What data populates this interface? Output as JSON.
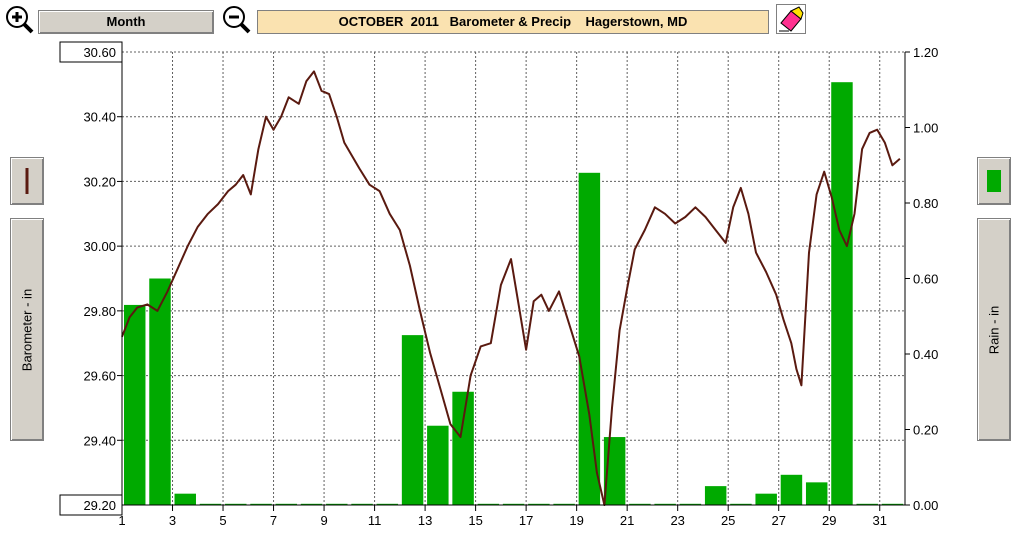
{
  "toolbar": {
    "period_label": "Month",
    "title": "OCTOBER  2011   Barometer & Precip    Hagerstown, MD"
  },
  "left_axis_label": "Barometer - in",
  "right_axis_label": "Rain - in",
  "colors": {
    "barometer_line": "#5a1a10",
    "rain_bars": "#00aa00",
    "title_bg": "#fae2b0",
    "panel_bg": "#d4d0c8"
  },
  "chart_data": {
    "type": "bar",
    "title": "OCTOBER  2011   Barometer & Precip    Hagerstown, MD",
    "xlim": [
      1,
      32
    ],
    "x_ticks": [
      1,
      3,
      5,
      7,
      9,
      11,
      13,
      15,
      17,
      19,
      21,
      23,
      25,
      27,
      29,
      31
    ],
    "x_tick_labels": [
      "1",
      "3",
      "5",
      "7",
      "9",
      "11",
      "13",
      "15",
      "17",
      "19",
      "21",
      "23",
      "25",
      "27",
      "29",
      "31"
    ],
    "grid": true,
    "y_left": {
      "label": "Barometer - in",
      "range": [
        29.2,
        30.6
      ],
      "ticks": [
        29.2,
        29.4,
        29.6,
        29.8,
        30.0,
        30.2,
        30.4,
        30.6
      ],
      "tick_labels": [
        "29.20",
        "29.40",
        "29.60",
        "29.80",
        "30.00",
        "30.20",
        "30.40",
        "30.60"
      ]
    },
    "y_right": {
      "label": "Rain - in",
      "range": [
        0,
        1.2
      ],
      "ticks": [
        0,
        0.2,
        0.4,
        0.6,
        0.8,
        1.0,
        1.2
      ],
      "tick_labels": [
        "0.00",
        "0.20",
        "0.40",
        "0.60",
        "0.80",
        "1.00",
        "1.20"
      ]
    },
    "series": [
      {
        "type": "bar",
        "axis": "right",
        "x": [
          1,
          2,
          3,
          4,
          5,
          6,
          7,
          8,
          9,
          10,
          11,
          12,
          13,
          14,
          15,
          16,
          17,
          18,
          19,
          20,
          21,
          22,
          23,
          24,
          25,
          26,
          27,
          28,
          29,
          30,
          31
        ],
        "values": [
          0.53,
          0.6,
          0.03,
          0,
          0,
          0,
          0,
          0,
          0,
          0,
          0,
          0.45,
          0.21,
          0.3,
          0,
          0,
          0,
          0,
          0.88,
          0.18,
          0,
          0,
          0,
          0.05,
          0,
          0.03,
          0.08,
          0.06,
          1.12,
          0,
          0
        ]
      },
      {
        "type": "line",
        "axis": "left",
        "x": [
          1.0,
          1.3,
          1.6,
          2.0,
          2.4,
          2.8,
          3.2,
          3.6,
          4.0,
          4.4,
          4.8,
          5.2,
          5.5,
          5.8,
          6.1,
          6.4,
          6.7,
          7.0,
          7.3,
          7.6,
          8.0,
          8.3,
          8.6,
          8.9,
          9.2,
          9.5,
          9.8,
          10.1,
          10.4,
          10.8,
          11.2,
          11.6,
          12.0,
          12.4,
          12.8,
          13.2,
          13.6,
          14.0,
          14.4,
          14.8,
          15.2,
          15.6,
          16.0,
          16.4,
          16.7,
          17.0,
          17.3,
          17.6,
          17.9,
          18.3,
          18.7,
          19.1,
          19.5,
          19.8,
          20.1,
          20.4,
          20.7,
          21.0,
          21.3,
          21.7,
          22.1,
          22.5,
          22.9,
          23.3,
          23.7,
          24.1,
          24.5,
          24.9,
          25.2,
          25.5,
          25.8,
          26.1,
          26.5,
          26.9,
          27.2,
          27.5,
          27.7,
          27.9,
          28.2,
          28.5,
          28.8,
          29.1,
          29.4,
          29.7,
          30.0,
          30.3,
          30.6,
          30.9,
          31.2,
          31.5,
          31.8
        ],
        "values": [
          29.72,
          29.78,
          29.81,
          29.82,
          29.8,
          29.86,
          29.93,
          30.0,
          30.06,
          30.1,
          30.13,
          30.17,
          30.19,
          30.22,
          30.16,
          30.3,
          30.4,
          30.36,
          30.4,
          30.46,
          30.44,
          30.51,
          30.54,
          30.48,
          30.47,
          30.4,
          30.32,
          30.28,
          30.24,
          30.19,
          30.17,
          30.1,
          30.05,
          29.94,
          29.8,
          29.67,
          29.56,
          29.45,
          29.41,
          29.6,
          29.69,
          29.7,
          29.88,
          29.96,
          29.82,
          29.68,
          29.83,
          29.85,
          29.8,
          29.86,
          29.76,
          29.66,
          29.48,
          29.3,
          29.2,
          29.5,
          29.74,
          29.87,
          29.99,
          30.05,
          30.12,
          30.1,
          30.07,
          30.09,
          30.12,
          30.09,
          30.05,
          30.01,
          30.12,
          30.18,
          30.1,
          29.98,
          29.92,
          29.85,
          29.77,
          29.7,
          29.62,
          29.57,
          29.98,
          30.16,
          30.23,
          30.15,
          30.05,
          30.0,
          30.1,
          30.3,
          30.35,
          30.36,
          30.32,
          30.25,
          30.27
        ]
      }
    ]
  }
}
